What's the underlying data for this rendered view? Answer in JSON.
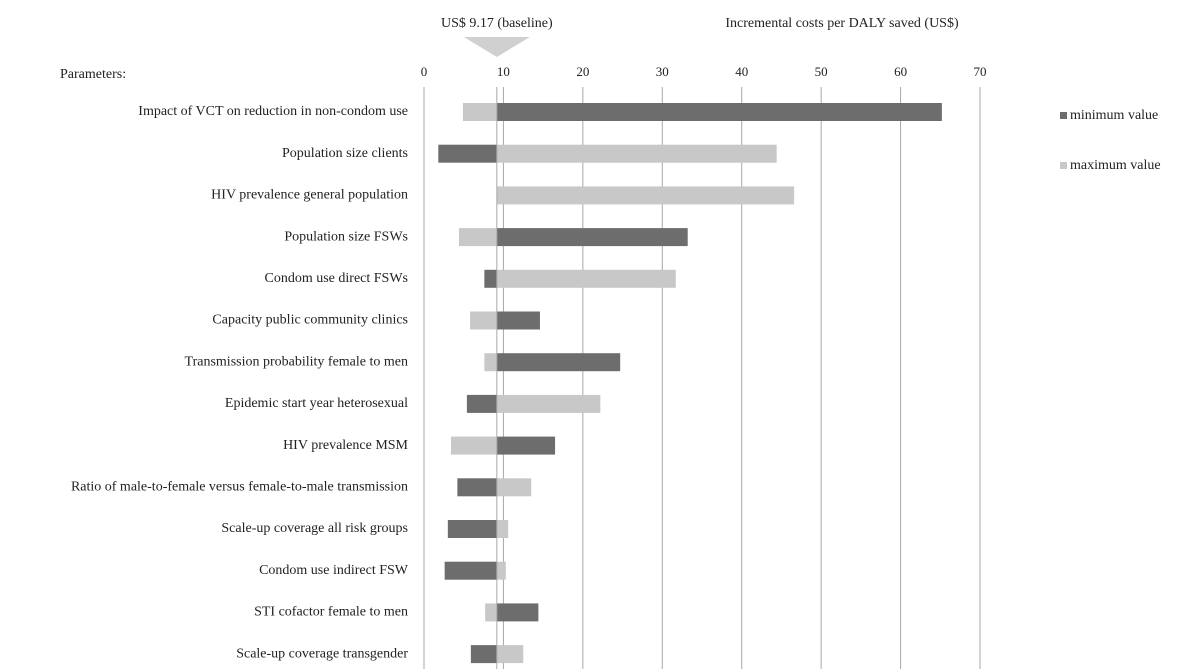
{
  "chart_data": {
    "type": "tornado",
    "axis_title": "Incremental costs per DALY saved (US$)",
    "category_header": "Parameters:",
    "baseline": 9.17,
    "baseline_label": "US$ 9.17 (baseline)",
    "categories": [
      "Impact of VCT on reduction in non-condom use",
      "Population size clients",
      "HIV prevalence general population",
      "Population size FSWs",
      "Condom use direct FSWs",
      "Capacity public community clinics",
      "Transmission probability female to men",
      "Epidemic start year heterosexual",
      "HIV prevalence MSM",
      "Ratio of male-to-female versus female-to-male transmission",
      "Scale-up coverage all risk groups",
      "Condom use indirect FSW",
      "STI cofactor female to men",
      "Scale-up coverage transgender"
    ],
    "series": [
      {
        "name": "minimum value",
        "color": "#6d6d6d",
        "values": [
          65.2,
          1.8,
          9.17,
          33.2,
          7.6,
          14.6,
          24.7,
          5.4,
          16.5,
          4.2,
          3.0,
          2.6,
          14.4,
          5.9
        ]
      },
      {
        "name": "maximum value",
        "color": "#c8c8c8",
        "values": [
          4.9,
          44.4,
          46.6,
          4.4,
          31.7,
          5.8,
          7.6,
          22.2,
          3.4,
          13.5,
          10.6,
          10.3,
          7.7,
          12.5
        ]
      }
    ],
    "xlim": [
      0,
      70
    ],
    "xticks": [
      0,
      10,
      20,
      30,
      40,
      50,
      60,
      70
    ],
    "grid": true,
    "legend": "right"
  }
}
